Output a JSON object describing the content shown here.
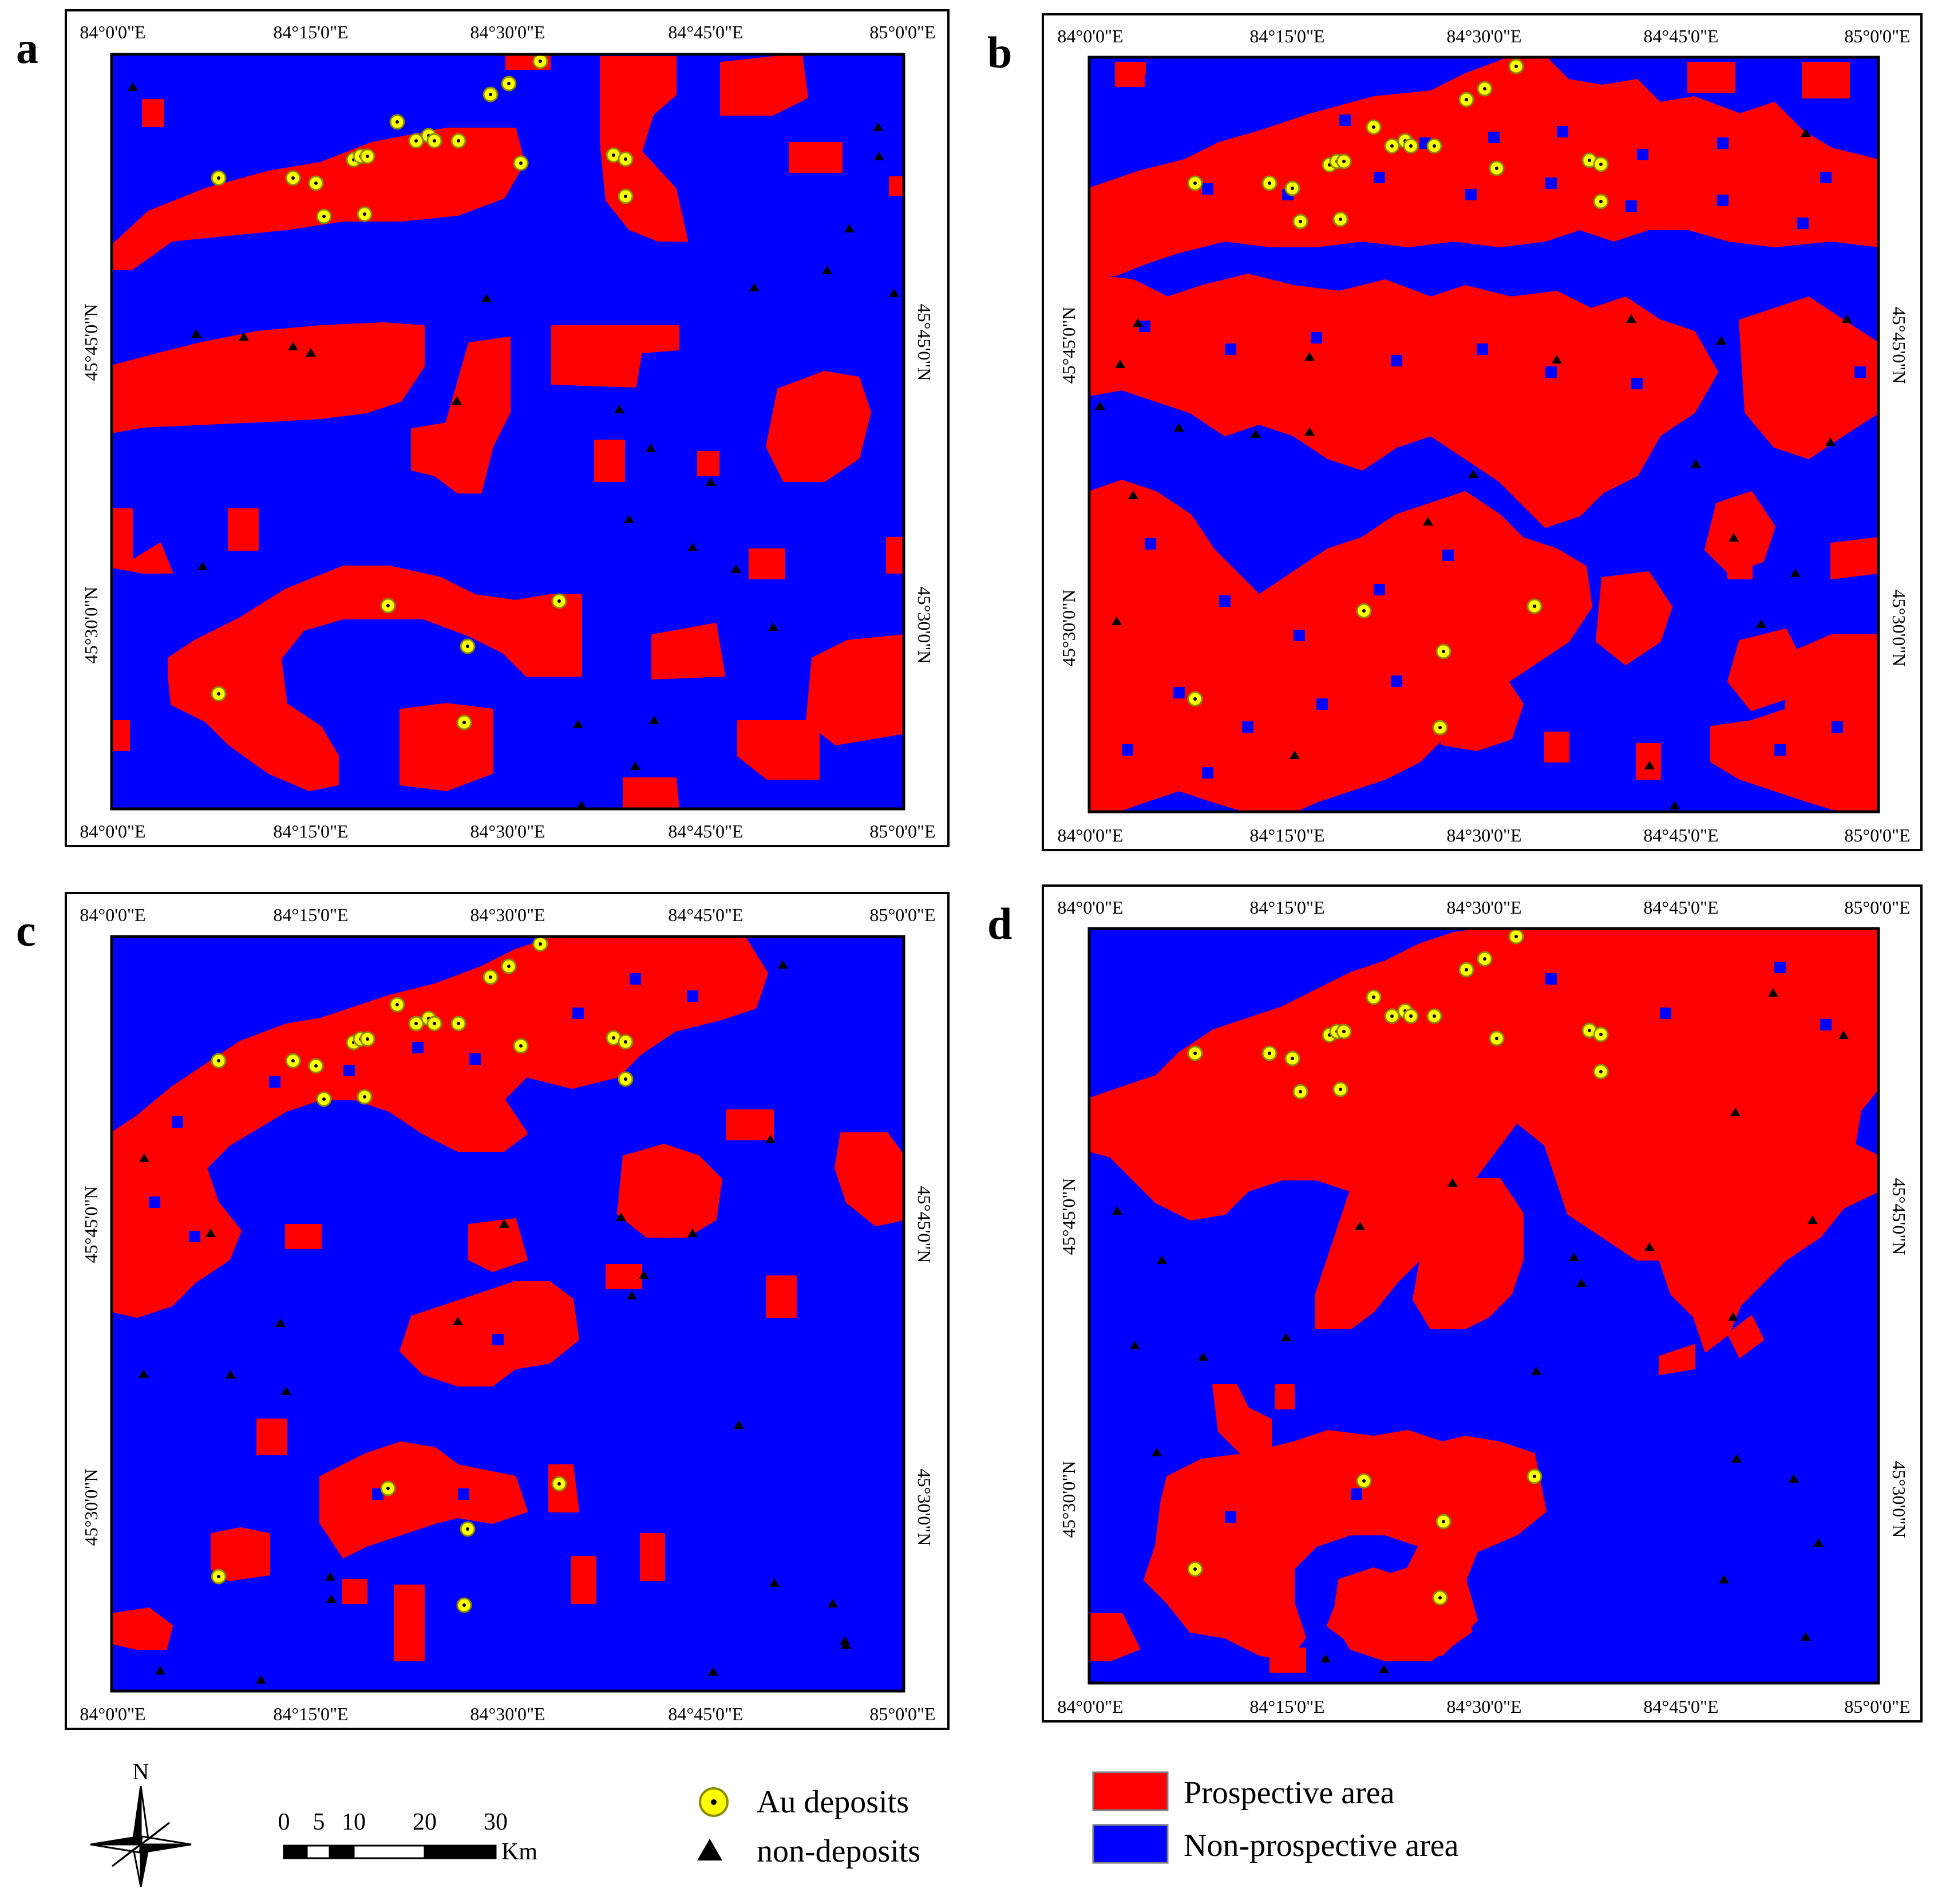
{
  "panels": [
    {
      "id": "a",
      "letter": "a"
    },
    {
      "id": "b",
      "letter": "b"
    },
    {
      "id": "c",
      "letter": "c"
    },
    {
      "id": "d",
      "letter": "d"
    }
  ],
  "axes": {
    "lon_ticks": [
      "84°0'0\"E",
      "84°15'0\"E",
      "84°30'0\"E",
      "84°45'0\"E",
      "85°0'0\"E"
    ],
    "lat_ticks": [
      "45°45'0\"N",
      "45°30'0\"N"
    ]
  },
  "colors": {
    "prospective": "#ff0000",
    "non_prospective": "#0000ff",
    "deposit_fill": "#ffff00",
    "non_deposit": "#000000"
  },
  "scale_bar": {
    "labels": [
      "0",
      "5",
      "10",
      "20",
      "30"
    ],
    "unit": "Km"
  },
  "north_arrow": {
    "label": "N"
  },
  "legend": {
    "symbols": [
      {
        "label": "Au deposits",
        "icon": "yellow-circle-dot"
      },
      {
        "label": "non-deposits",
        "icon": "black-triangle"
      }
    ],
    "areas": [
      {
        "label": "Prospective area",
        "color": "#ff0000"
      },
      {
        "label": "Non-prospective area",
        "color": "#0000ff"
      }
    ]
  }
}
